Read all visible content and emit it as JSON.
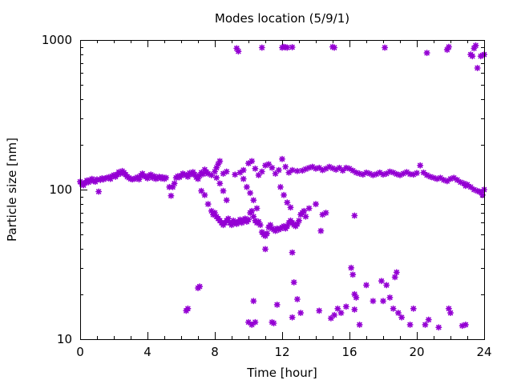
{
  "chart_data": {
    "type": "scatter",
    "title": "Modes location (5/9/1)",
    "xlabel": "Time [hour]",
    "ylabel": "Particle size [nm]",
    "xlim": [
      0,
      24
    ],
    "ylim": [
      10,
      1000
    ],
    "yscale": "log",
    "grid": false,
    "x_ticks": [
      0,
      4,
      8,
      12,
      16,
      20,
      24
    ],
    "x_tick_labels": [
      "0",
      "4",
      "8",
      "12",
      "16",
      "20",
      "24"
    ],
    "y_ticks": [
      10,
      100,
      1000
    ],
    "y_tick_labels": [
      "10",
      "100",
      "1000"
    ],
    "marker_color": "#9400d3",
    "marker": "star",
    "series": [
      {
        "points": [
          [
            0.0,
            113
          ],
          [
            0.1,
            109
          ],
          [
            0.2,
            107
          ],
          [
            0.3,
            111
          ],
          [
            0.4,
            115
          ],
          [
            0.5,
            112
          ],
          [
            0.6,
            116
          ],
          [
            0.7,
            118
          ],
          [
            0.8,
            114
          ],
          [
            0.9,
            113
          ],
          [
            1.0,
            117
          ],
          [
            1.1,
            97
          ],
          [
            1.2,
            116
          ],
          [
            1.3,
            119
          ],
          [
            1.4,
            117
          ],
          [
            1.5,
            119
          ],
          [
            1.6,
            120
          ],
          [
            1.7,
            121
          ],
          [
            1.8,
            118
          ],
          [
            1.9,
            123
          ],
          [
            2.0,
            125
          ],
          [
            2.1,
            122
          ],
          [
            2.2,
            126
          ],
          [
            2.3,
            131
          ],
          [
            2.4,
            128
          ],
          [
            2.5,
            133
          ],
          [
            2.6,
            130
          ],
          [
            2.7,
            126
          ],
          [
            2.8,
            122
          ],
          [
            2.9,
            120
          ],
          [
            3.0,
            118
          ],
          [
            3.1,
            117
          ],
          [
            3.2,
            118
          ],
          [
            3.3,
            119
          ],
          [
            3.4,
            121
          ],
          [
            3.5,
            117
          ],
          [
            3.6,
            124
          ],
          [
            3.7,
            128
          ],
          [
            3.8,
            123
          ],
          [
            3.9,
            122
          ],
          [
            4.0,
            119
          ],
          [
            4.1,
            124
          ],
          [
            4.2,
            126
          ],
          [
            4.3,
            120
          ],
          [
            4.4,
            123
          ],
          [
            4.5,
            118
          ],
          [
            4.6,
            120
          ],
          [
            4.7,
            122
          ],
          [
            4.8,
            119
          ],
          [
            4.9,
            121
          ],
          [
            5.0,
            118
          ],
          [
            5.1,
            120
          ],
          [
            5.3,
            104
          ],
          [
            5.4,
            91
          ],
          [
            5.5,
            104
          ],
          [
            5.6,
            110
          ],
          [
            5.7,
            120
          ],
          [
            5.8,
            123
          ],
          [
            5.9,
            121
          ],
          [
            6.0,
            124
          ],
          [
            6.1,
            128
          ],
          [
            6.2,
            126
          ],
          [
            6.3,
            125
          ],
          [
            6.4,
            122
          ],
          [
            6.5,
            129
          ],
          [
            6.6,
            127
          ],
          [
            6.7,
            131
          ],
          [
            6.8,
            126
          ],
          [
            6.9,
            121
          ],
          [
            7.0,
            118
          ],
          [
            7.1,
            124
          ],
          [
            7.2,
            130
          ],
          [
            7.3,
            127
          ],
          [
            7.4,
            136
          ],
          [
            7.5,
            131
          ],
          [
            7.6,
            128
          ],
          [
            7.8,
            125
          ],
          [
            8.0,
            132
          ],
          [
            8.1,
            140
          ],
          [
            8.2,
            148
          ],
          [
            8.3,
            155
          ],
          [
            8.5,
            128
          ],
          [
            8.7,
            132
          ],
          [
            9.2,
            126
          ],
          [
            9.5,
            130
          ],
          [
            9.7,
            135
          ],
          [
            10.0,
            150
          ],
          [
            10.2,
            155
          ],
          [
            10.4,
            138
          ],
          [
            10.6,
            125
          ],
          [
            10.8,
            132
          ],
          [
            11.0,
            145
          ],
          [
            11.2,
            148
          ],
          [
            11.4,
            140
          ],
          [
            11.6,
            128
          ],
          [
            11.8,
            135
          ],
          [
            12.0,
            160
          ],
          [
            12.2,
            142
          ],
          [
            12.4,
            130
          ],
          [
            12.9,
            133
          ],
          [
            13.2,
            134
          ],
          [
            13.4,
            137
          ],
          [
            13.6,
            140
          ],
          [
            13.8,
            142
          ],
          [
            14.0,
            138
          ],
          [
            14.2,
            140
          ],
          [
            14.4,
            135
          ],
          [
            14.6,
            138
          ],
          [
            14.8,
            142
          ],
          [
            15.0,
            139
          ],
          [
            15.2,
            136
          ],
          [
            15.4,
            140
          ],
          [
            15.6,
            134
          ],
          [
            15.8,
            140
          ],
          [
            16.0,
            138
          ],
          [
            16.2,
            134
          ],
          [
            16.4,
            130
          ],
          [
            16.6,
            128
          ],
          [
            16.8,
            126
          ],
          [
            17.0,
            130
          ],
          [
            17.2,
            128
          ],
          [
            17.4,
            125
          ],
          [
            17.6,
            127
          ],
          [
            17.8,
            130
          ],
          [
            18.0,
            126
          ],
          [
            18.2,
            128
          ],
          [
            18.4,
            132
          ],
          [
            18.6,
            130
          ],
          [
            18.8,
            127
          ],
          [
            19.0,
            125
          ],
          [
            19.2,
            128
          ],
          [
            19.4,
            131
          ],
          [
            19.6,
            127
          ],
          [
            19.8,
            126
          ],
          [
            20.0,
            129
          ],
          [
            20.2,
            145
          ],
          [
            20.4,
            130
          ],
          [
            20.6,
            125
          ],
          [
            20.8,
            122
          ],
          [
            21.0,
            120
          ],
          [
            21.2,
            118
          ],
          [
            21.4,
            120
          ],
          [
            21.6,
            116
          ],
          [
            21.8,
            114
          ],
          [
            22.0,
            118
          ],
          [
            22.2,
            120
          ],
          [
            22.4,
            116
          ],
          [
            22.6,
            112
          ],
          [
            22.8,
            110
          ],
          [
            23.0,
            108
          ],
          [
            23.2,
            104
          ],
          [
            23.4,
            100
          ],
          [
            23.6,
            98
          ],
          [
            23.8,
            96
          ],
          [
            24.0,
            100
          ],
          [
            23.9,
            92
          ],
          [
            23.7,
            97
          ],
          [
            22.9,
            106
          ],
          [
            12.6,
            135
          ]
        ]
      },
      {
        "points": [
          [
            7.2,
            98
          ],
          [
            7.4,
            92
          ],
          [
            7.6,
            80
          ],
          [
            7.8,
            72
          ],
          [
            7.9,
            68
          ],
          [
            8.0,
            70
          ],
          [
            8.1,
            66
          ],
          [
            8.2,
            64
          ],
          [
            8.3,
            62
          ],
          [
            8.4,
            60
          ],
          [
            8.5,
            58
          ],
          [
            8.6,
            60
          ],
          [
            8.7,
            62
          ],
          [
            8.8,
            64
          ],
          [
            8.9,
            60
          ],
          [
            9.0,
            58
          ],
          [
            9.1,
            62
          ],
          [
            9.2,
            60
          ],
          [
            9.3,
            59
          ],
          [
            9.4,
            61
          ],
          [
            9.5,
            63
          ],
          [
            9.6,
            60
          ],
          [
            9.7,
            62
          ],
          [
            9.8,
            64
          ],
          [
            9.9,
            61
          ],
          [
            10.0,
            63
          ],
          [
            10.1,
            70
          ],
          [
            10.2,
            72
          ],
          [
            10.3,
            66
          ],
          [
            10.4,
            62
          ],
          [
            10.5,
            60
          ],
          [
            10.6,
            61
          ],
          [
            10.7,
            58
          ],
          [
            10.8,
            52
          ],
          [
            10.9,
            50
          ],
          [
            11.0,
            49
          ],
          [
            11.1,
            51
          ],
          [
            11.2,
            56
          ],
          [
            11.3,
            58
          ],
          [
            11.4,
            55
          ],
          [
            11.5,
            54
          ],
          [
            11.6,
            53
          ],
          [
            11.7,
            55
          ],
          [
            11.8,
            54
          ],
          [
            11.9,
            55
          ],
          [
            12.0,
            56
          ],
          [
            12.1,
            57
          ],
          [
            12.2,
            55
          ],
          [
            12.3,
            57
          ],
          [
            12.4,
            60
          ],
          [
            12.5,
            62
          ],
          [
            12.6,
            60
          ],
          [
            12.7,
            58
          ],
          [
            12.8,
            57
          ],
          [
            12.9,
            59
          ],
          [
            13.0,
            62
          ],
          [
            13.1,
            68
          ],
          [
            13.2,
            70
          ],
          [
            13.3,
            72
          ],
          [
            13.4,
            66
          ],
          [
            8.1,
            120
          ],
          [
            8.3,
            110
          ],
          [
            8.5,
            98
          ],
          [
            8.7,
            85
          ],
          [
            9.7,
            118
          ],
          [
            9.9,
            104
          ],
          [
            10.1,
            95
          ],
          [
            10.3,
            85
          ],
          [
            10.5,
            75
          ],
          [
            11.9,
            104
          ],
          [
            12.1,
            92
          ],
          [
            12.3,
            82
          ],
          [
            12.5,
            76
          ],
          [
            11.0,
            40
          ],
          [
            12.6,
            38
          ],
          [
            14.0,
            80
          ],
          [
            14.3,
            53
          ],
          [
            14.6,
            70
          ],
          [
            16.3,
            67
          ],
          [
            13.6,
            75
          ],
          [
            14.4,
            68
          ]
        ]
      },
      {
        "points": [
          [
            9.3,
            880
          ],
          [
            9.4,
            840
          ],
          [
            10.8,
            890
          ],
          [
            12.0,
            890
          ],
          [
            12.1,
            900
          ],
          [
            12.2,
            895
          ],
          [
            12.3,
            890
          ],
          [
            12.6,
            895
          ],
          [
            15.0,
            900
          ],
          [
            15.1,
            890
          ],
          [
            18.1,
            890
          ],
          [
            20.6,
            820
          ],
          [
            21.8,
            860
          ],
          [
            21.9,
            900
          ],
          [
            23.2,
            800
          ],
          [
            23.3,
            780
          ],
          [
            23.4,
            880
          ],
          [
            23.5,
            920
          ],
          [
            23.6,
            650
          ],
          [
            23.8,
            780
          ],
          [
            23.9,
            790
          ],
          [
            24.0,
            800
          ]
        ]
      },
      {
        "points": [
          [
            6.3,
            15.5
          ],
          [
            6.4,
            16
          ],
          [
            7.0,
            22
          ],
          [
            7.1,
            22.5
          ],
          [
            10.0,
            13
          ],
          [
            10.2,
            12.5
          ],
          [
            10.3,
            18
          ],
          [
            10.4,
            13
          ],
          [
            11.4,
            13
          ],
          [
            11.5,
            12.8
          ],
          [
            11.7,
            17
          ],
          [
            12.6,
            14
          ],
          [
            12.7,
            24
          ],
          [
            12.9,
            18.5
          ],
          [
            13.1,
            15
          ],
          [
            14.2,
            15.5
          ],
          [
            14.9,
            13.8
          ],
          [
            15.1,
            14.5
          ],
          [
            15.3,
            16
          ],
          [
            15.5,
            15
          ],
          [
            15.8,
            16.5
          ],
          [
            16.1,
            30
          ],
          [
            16.2,
            27
          ],
          [
            16.3,
            20
          ],
          [
            16.4,
            19
          ],
          [
            16.6,
            12.5
          ],
          [
            17.0,
            23
          ],
          [
            17.4,
            18
          ],
          [
            17.9,
            24.5
          ],
          [
            18.0,
            18
          ],
          [
            18.2,
            23
          ],
          [
            18.4,
            19
          ],
          [
            18.6,
            16
          ],
          [
            18.7,
            26
          ],
          [
            18.8,
            28
          ],
          [
            18.9,
            15
          ],
          [
            19.1,
            14
          ],
          [
            19.6,
            12.5
          ],
          [
            19.8,
            16
          ],
          [
            20.5,
            12.5
          ],
          [
            20.7,
            13.5
          ],
          [
            21.3,
            12
          ],
          [
            21.9,
            16
          ],
          [
            22.0,
            15
          ],
          [
            22.7,
            12.3
          ],
          [
            22.9,
            12.5
          ],
          [
            16.3,
            15.8
          ]
        ]
      }
    ]
  }
}
